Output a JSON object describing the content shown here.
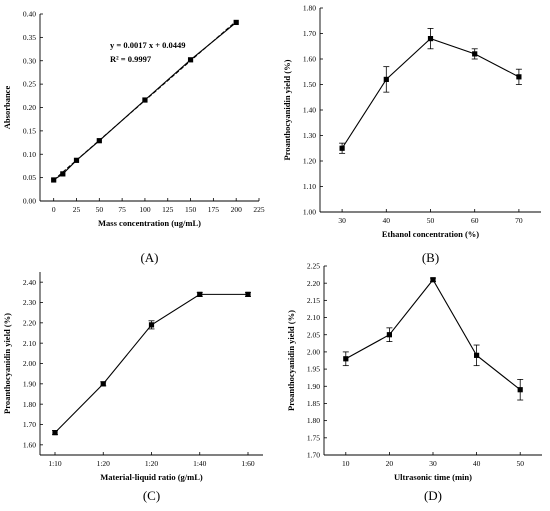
{
  "chart_data": [
    {
      "type": "line",
      "x": [
        0,
        10,
        25,
        50,
        100,
        150,
        200
      ],
      "series": [
        {
          "values": [
            0.045,
            0.058,
            0.087,
            0.129,
            0.216,
            0.302,
            0.382
          ]
        }
      ],
      "fit": {
        "slope": 0.0017,
        "intercept": 0.0449,
        "x_range": [
          0,
          200
        ]
      },
      "xlabel": "Mass concentration (ug/mL)",
      "ylabel": "Absorbance",
      "xlim": [
        -15,
        225
      ],
      "ylim": [
        0,
        0.4
      ],
      "xticks": [
        0,
        25,
        50,
        75,
        100,
        125,
        150,
        175,
        200,
        225
      ],
      "xtick_labels": [
        "0",
        "25",
        "50",
        "75",
        "100",
        "125",
        "150",
        "175",
        "200",
        "225"
      ],
      "yticks": [
        0,
        0.05,
        0.1,
        0.15,
        0.2,
        0.25,
        0.3,
        0.35,
        0.4
      ],
      "ytick_labels": [
        "0.00",
        "0.05",
        "0.10",
        "0.15",
        "0.20",
        "0.25",
        "0.30",
        "0.35",
        "0.40"
      ],
      "annotations": [
        "y = 0.0017 x + 0.0449",
        "R² = 0.9997"
      ],
      "panel_label": "(A)",
      "grid": false
    },
    {
      "type": "line",
      "x": [
        30,
        40,
        50,
        60,
        70
      ],
      "series": [
        {
          "values": [
            1.25,
            1.52,
            1.68,
            1.62,
            1.53
          ],
          "errors": [
            0.02,
            0.05,
            0.04,
            0.02,
            0.03
          ]
        }
      ],
      "xlabel": "Ethanol concentration (%)",
      "ylabel": "Proanthocyanidin yield (%)",
      "xlim": [
        25,
        75
      ],
      "ylim": [
        1.0,
        1.8
      ],
      "xticks": [
        30,
        40,
        50,
        60,
        70
      ],
      "xtick_labels": [
        "30",
        "40",
        "50",
        "60",
        "70"
      ],
      "yticks": [
        1.0,
        1.1,
        1.2,
        1.3,
        1.4,
        1.5,
        1.6,
        1.7,
        1.8
      ],
      "ytick_labels": [
        "1.00",
        "1.10",
        "1.20",
        "1.30",
        "1.40",
        "1.50",
        "1.60",
        "1.70",
        "1.80"
      ],
      "panel_label": "(B)",
      "grid": false
    },
    {
      "type": "line",
      "categories": [
        "1:10",
        "1:20",
        "1:20",
        "1:40",
        "1:60"
      ],
      "series": [
        {
          "values": [
            1.66,
            1.9,
            2.19,
            2.34,
            2.34
          ],
          "errors": [
            0.01,
            0.01,
            0.02,
            0.01,
            0.01
          ]
        }
      ],
      "xlabel": "Material-liquid ratio (g/mL)",
      "ylabel": "Proanthocyanidin yield (%)",
      "ylim": [
        1.55,
        2.45
      ],
      "yticks": [
        1.6,
        1.7,
        1.8,
        1.9,
        2.0,
        2.1,
        2.2,
        2.3,
        2.4
      ],
      "ytick_labels": [
        "1.60",
        "1.70",
        "1.80",
        "1.90",
        "2.00",
        "2.10",
        "2.20",
        "2.30",
        "2.40"
      ],
      "panel_label": "(C)",
      "grid": false
    },
    {
      "type": "line",
      "x": [
        10,
        20,
        30,
        40,
        50
      ],
      "series": [
        {
          "values": [
            1.98,
            2.05,
            2.21,
            1.99,
            1.89
          ],
          "errors": [
            0.02,
            0.02,
            0.005,
            0.03,
            0.03
          ]
        }
      ],
      "xlabel": "Ultrasonic time (min)",
      "ylabel": "Proanthocyanidin yield (%)",
      "xlim": [
        5,
        55
      ],
      "ylim": [
        1.7,
        2.25
      ],
      "xticks": [
        10,
        20,
        30,
        40,
        50
      ],
      "xtick_labels": [
        "10",
        "20",
        "30",
        "40",
        "50"
      ],
      "yticks": [
        1.7,
        1.75,
        1.8,
        1.85,
        1.9,
        1.95,
        2.0,
        2.05,
        2.1,
        2.15,
        2.2,
        2.25
      ],
      "ytick_labels": [
        "1.70",
        "1.75",
        "1.80",
        "1.85",
        "1.90",
        "1.95",
        "2.00",
        "2.05",
        "2.10",
        "2.15",
        "2.20",
        "2.25"
      ],
      "panel_label": "(D)",
      "grid": false
    }
  ]
}
